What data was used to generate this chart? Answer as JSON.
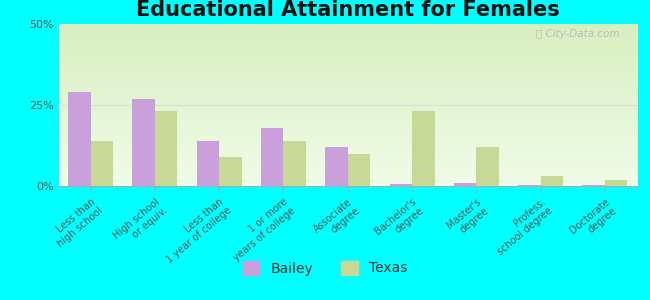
{
  "title": "Educational Attainment for Females",
  "categories": [
    "Less than\nhigh school",
    "High school\nor equiv.",
    "Less than\n1 year of college",
    "1 or more\nyears of college",
    "Associate\ndegree",
    "Bachelor's\ndegree",
    "Master's\ndegree",
    "Profess.\nschool degree",
    "Doctorate\ndegree"
  ],
  "bailey_values": [
    29,
    27,
    14,
    18,
    12,
    0.5,
    1,
    0.3,
    0.3
  ],
  "texas_values": [
    14,
    23,
    9,
    14,
    10,
    23,
    12,
    3,
    2
  ],
  "bailey_color": "#c9a0dc",
  "texas_color": "#c8d896",
  "background_color": "#00ffff",
  "ylim": [
    0,
    50
  ],
  "yticks": [
    0,
    25,
    50
  ],
  "ytick_labels": [
    "0%",
    "25%",
    "50%"
  ],
  "title_fontsize": 15,
  "tick_fontsize": 7,
  "legend_fontsize": 10,
  "bar_width": 0.35
}
